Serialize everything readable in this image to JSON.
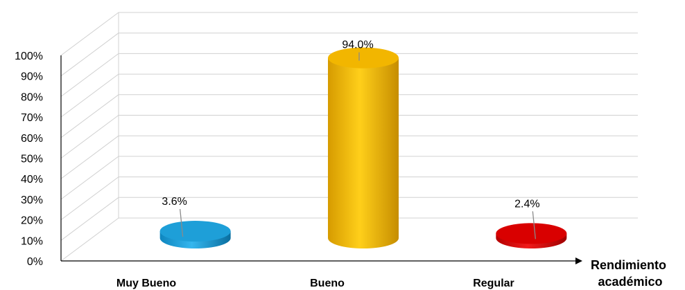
{
  "chart_data": {
    "type": "bar",
    "style": "3d-cylinder",
    "categories": [
      "Muy Bueno",
      "Bueno",
      "Regular"
    ],
    "values": [
      3.6,
      94.0,
      2.4
    ],
    "data_labels": [
      "3.6%",
      "94.0%",
      "2.4%"
    ],
    "colors": [
      "#1e9fd8",
      "#f2b600",
      "#d90000"
    ],
    "xlabel": "Rendimiento académico",
    "xlabel_lines": [
      "Rendimiento",
      "académico"
    ],
    "ylabel": "",
    "ylim": [
      0,
      100
    ],
    "yticks": [
      "0%",
      "10%",
      "20%",
      "30%",
      "40%",
      "50%",
      "60%",
      "70%",
      "80%",
      "90%",
      "100%"
    ],
    "grid": true,
    "legend": "none"
  }
}
